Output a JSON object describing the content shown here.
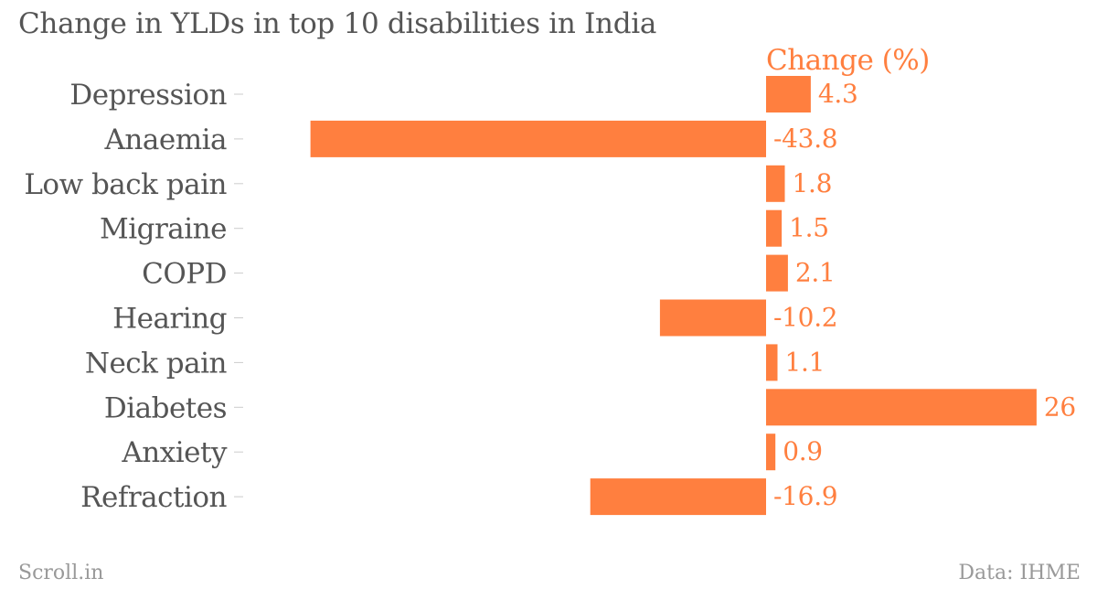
{
  "title": "Change in YLDs in top 10 disabilities in India",
  "footer": {
    "left": "Scroll.in",
    "right": "Data: IHME"
  },
  "colors": {
    "bar": "#ff7f3f",
    "label": "#555555",
    "value": "#ff7f3f",
    "footer": "#999999"
  },
  "chart_data": {
    "type": "bar",
    "orientation": "horizontal",
    "title": "Change in YLDs in top 10 disabilities in India",
    "series": [
      {
        "name": "Change (%)",
        "values": [
          4.3,
          -43.8,
          1.8,
          1.5,
          2.1,
          -10.2,
          1.1,
          26,
          0.9,
          -16.9
        ],
        "value_labels": [
          "4.3",
          "-43.8",
          "1.8",
          "1.5",
          "2.1",
          "-10.2",
          "1.1",
          "26",
          "0.9",
          "-16.9"
        ]
      }
    ],
    "categories": [
      "Depression",
      "Anaemia",
      "Low back pain",
      "Migraine",
      "COPD",
      "Hearing",
      "Neck pain",
      "Diabetes",
      "Anxiety",
      "Refraction"
    ],
    "xlim": [
      -43.8,
      26
    ],
    "grid": false,
    "legend": "none"
  }
}
